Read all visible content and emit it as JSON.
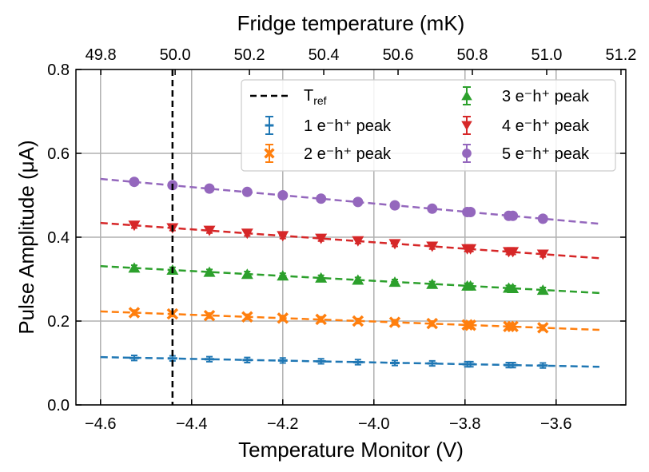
{
  "chart_data": {
    "type": "scatter",
    "title": "",
    "xlabel": "Temperature Monitor (V)",
    "ylabel": "Pulse Amplitude (μA)",
    "top_xlabel": "Fridge temperature (mK)",
    "xlim": [
      -4.654,
      -3.447
    ],
    "ylim": [
      0.0,
      0.8
    ],
    "top_xlim": [
      49.733,
      51.213
    ],
    "xticks": [
      -4.6,
      -4.4,
      -4.2,
      -4.0,
      -3.8,
      -3.6
    ],
    "xtick_labels": [
      "−4.6",
      "−4.4",
      "−4.2",
      "−4.0",
      "−3.8",
      "−3.6"
    ],
    "yticks": [
      0.0,
      0.2,
      0.4,
      0.6,
      0.8
    ],
    "ytick_labels": [
      "0.0",
      "0.2",
      "0.4",
      "0.6",
      "0.8"
    ],
    "top_xticks": [
      49.8,
      50.0,
      50.2,
      50.4,
      50.6,
      50.8,
      51.0,
      51.2
    ],
    "top_xtick_labels": [
      "49.8",
      "50.0",
      "50.2",
      "50.4",
      "50.6",
      "50.8",
      "51.0",
      "51.2"
    ],
    "grid": true,
    "legend_placement": "top-right",
    "reference_line": {
      "x": -4.442,
      "label": "T",
      "label_subscript": "ref",
      "color": "#000000",
      "style": "dashed"
    },
    "x": [
      -4.526,
      -4.442,
      -4.361,
      -4.278,
      -4.2,
      -4.116,
      -4.035,
      -3.954,
      -3.872,
      -3.795,
      -3.788,
      -3.704,
      -3.695,
      -3.629
    ],
    "series": [
      {
        "name": "1 e⁻h⁺ peak",
        "color": "#1f77b4",
        "marker": "plus",
        "values": [
          0.112,
          0.111,
          0.109,
          0.107,
          0.106,
          0.104,
          0.102,
          0.1,
          0.099,
          0.097,
          0.097,
          0.095,
          0.095,
          0.094
        ],
        "yerr": 0.006,
        "fit": {
          "x": [
            -4.6,
            -3.505
          ],
          "y": [
            0.114,
            0.091
          ]
        }
      },
      {
        "name": "2 e⁻h⁺ peak",
        "color": "#ff7f0e",
        "marker": "x",
        "values": [
          0.22,
          0.217,
          0.213,
          0.21,
          0.207,
          0.204,
          0.2,
          0.197,
          0.194,
          0.191,
          0.19,
          0.187,
          0.187,
          0.184
        ],
        "yerr": 0.006,
        "fit": {
          "x": [
            -4.6,
            -3.505
          ],
          "y": [
            0.223,
            0.179
          ]
        }
      },
      {
        "name": "3 e⁻h⁺ peak",
        "color": "#2ca02c",
        "marker": "triangle-up",
        "values": [
          0.327,
          0.322,
          0.317,
          0.312,
          0.308,
          0.303,
          0.298,
          0.293,
          0.288,
          0.284,
          0.284,
          0.279,
          0.278,
          0.274
        ],
        "yerr": 0.006,
        "fit": {
          "x": [
            -4.6,
            -3.505
          ],
          "y": [
            0.331,
            0.267
          ]
        }
      },
      {
        "name": "4 e⁻h⁺ peak",
        "color": "#d62728",
        "marker": "triangle-down",
        "values": [
          0.428,
          0.422,
          0.416,
          0.409,
          0.403,
          0.397,
          0.391,
          0.384,
          0.378,
          0.372,
          0.372,
          0.365,
          0.365,
          0.359
        ],
        "yerr": 0.006,
        "fit": {
          "x": [
            -4.6,
            -3.505
          ],
          "y": [
            0.434,
            0.35
          ]
        }
      },
      {
        "name": "5 e⁻h⁺ peak",
        "color": "#9467bd",
        "marker": "circle",
        "values": [
          0.532,
          0.524,
          0.516,
          0.508,
          0.5,
          0.492,
          0.484,
          0.476,
          0.468,
          0.46,
          0.46,
          0.451,
          0.451,
          0.444
        ],
        "yerr": 0.005,
        "fit": {
          "x": [
            -4.6,
            -3.505
          ],
          "y": [
            0.539,
            0.432
          ]
        }
      }
    ]
  }
}
